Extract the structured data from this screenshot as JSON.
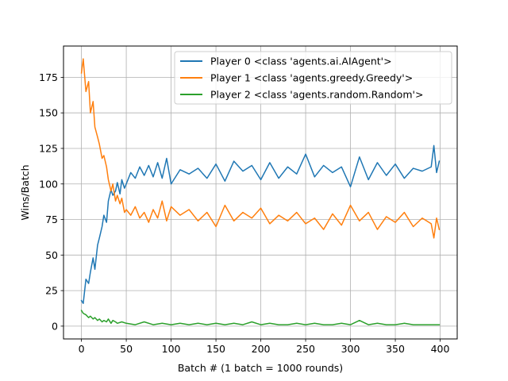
{
  "chart_data": {
    "type": "line",
    "title": "",
    "xlabel": "Batch # (1 batch = 1000 rounds)",
    "ylabel": "Wins/Batch",
    "xlim": [
      -20,
      419
    ],
    "ylim": [
      -9,
      197
    ],
    "xticks": [
      0,
      50,
      100,
      150,
      200,
      250,
      300,
      350,
      400
    ],
    "yticks": [
      0,
      25,
      50,
      75,
      100,
      125,
      150,
      175
    ],
    "grid": true,
    "legend_position": "top-right",
    "series": [
      {
        "name": "Player 0 <class 'agents.ai.AIAgent'>",
        "color": "#1f77b4",
        "x": [
          0,
          2,
          5,
          8,
          10,
          13,
          15,
          18,
          20,
          23,
          25,
          28,
          30,
          33,
          35,
          38,
          40,
          43,
          45,
          48,
          50,
          55,
          60,
          65,
          70,
          75,
          80,
          85,
          90,
          95,
          100,
          110,
          120,
          130,
          140,
          150,
          160,
          170,
          180,
          190,
          200,
          210,
          220,
          230,
          240,
          250,
          260,
          270,
          280,
          290,
          300,
          310,
          320,
          330,
          340,
          350,
          360,
          370,
          380,
          390,
          393,
          396,
          399
        ],
        "y": [
          18,
          16,
          33,
          30,
          38,
          48,
          40,
          57,
          62,
          70,
          78,
          73,
          88,
          96,
          92,
          95,
          101,
          93,
          103,
          97,
          100,
          108,
          104,
          112,
          106,
          113,
          105,
          115,
          104,
          118,
          100,
          110,
          107,
          111,
          104,
          114,
          102,
          116,
          109,
          113,
          103,
          115,
          104,
          112,
          107,
          121,
          105,
          113,
          108,
          112,
          98,
          119,
          103,
          115,
          106,
          114,
          104,
          111,
          109,
          112,
          127,
          108,
          116
        ]
      },
      {
        "name": "Player 1 <class 'agents.greedy.Greedy'>",
        "color": "#ff7f0e",
        "x": [
          0,
          2,
          5,
          8,
          10,
          13,
          15,
          18,
          20,
          23,
          25,
          28,
          30,
          33,
          35,
          38,
          40,
          43,
          45,
          48,
          50,
          55,
          60,
          65,
          70,
          75,
          80,
          85,
          90,
          95,
          100,
          110,
          120,
          130,
          140,
          150,
          160,
          170,
          180,
          190,
          200,
          210,
          220,
          230,
          240,
          250,
          260,
          270,
          280,
          290,
          300,
          310,
          320,
          330,
          340,
          350,
          360,
          370,
          380,
          390,
          393,
          396,
          399
        ],
        "y": [
          178,
          188,
          165,
          172,
          150,
          158,
          140,
          133,
          128,
          118,
          120,
          112,
          103,
          95,
          100,
          88,
          92,
          86,
          90,
          80,
          82,
          78,
          84,
          76,
          80,
          73,
          82,
          76,
          88,
          74,
          84,
          78,
          82,
          74,
          80,
          70,
          85,
          74,
          80,
          76,
          83,
          72,
          78,
          74,
          80,
          72,
          76,
          68,
          79,
          71,
          85,
          74,
          80,
          68,
          77,
          73,
          80,
          70,
          76,
          72,
          62,
          76,
          68
        ]
      },
      {
        "name": "Player 2 <class 'agents.random.Random'>",
        "color": "#2ca02c",
        "x": [
          0,
          2,
          5,
          8,
          10,
          13,
          15,
          18,
          20,
          23,
          25,
          28,
          30,
          33,
          35,
          38,
          40,
          45,
          50,
          60,
          70,
          80,
          90,
          100,
          110,
          120,
          130,
          140,
          150,
          160,
          170,
          180,
          190,
          200,
          210,
          220,
          230,
          240,
          250,
          260,
          270,
          280,
          290,
          300,
          310,
          320,
          330,
          340,
          350,
          360,
          370,
          380,
          390,
          399
        ],
        "y": [
          11,
          9,
          8,
          6,
          7,
          5,
          6,
          4,
          5,
          3,
          4,
          3,
          5,
          2,
          4,
          3,
          2,
          3,
          2,
          1,
          3,
          1,
          2,
          1,
          2,
          1,
          2,
          1,
          2,
          1,
          2,
          1,
          3,
          1,
          2,
          1,
          1,
          2,
          1,
          2,
          1,
          1,
          2,
          1,
          4,
          1,
          2,
          1,
          1,
          2,
          1,
          1,
          1,
          1
        ]
      }
    ]
  }
}
